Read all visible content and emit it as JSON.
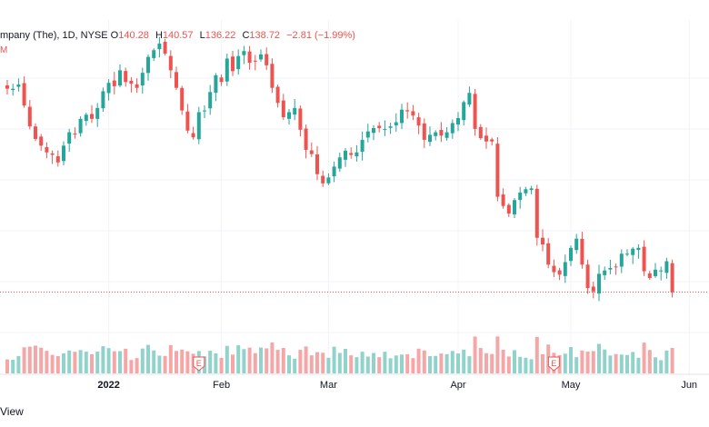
{
  "legend": {
    "title": "mpany (The), 1D, NYSE",
    "o_label": "O",
    "o_value": "140.28",
    "h_label": "H",
    "h_value": "140.57",
    "l_label": "L",
    "l_value": "136.22",
    "c_label": "C",
    "c_value": "138.72",
    "change": "−2.81 (−1.99%)",
    "sub": "M"
  },
  "footer": {
    "text": "View"
  },
  "colors": {
    "up": "#26a69a",
    "down": "#ef5350",
    "up_volume": "#8fd3cb",
    "down_volume": "#f5a6a6",
    "grid": "#f0f3fa"
  },
  "chart_data": {
    "type": "candlestick",
    "symbol_exchange": "NYSE",
    "interval": "1D",
    "last_close": 138.72,
    "x_tick_labels": [
      {
        "label": "2022",
        "index": 18,
        "bold": true
      },
      {
        "label": "Feb",
        "index": 38,
        "bold": false
      },
      {
        "label": "Mar",
        "index": 57,
        "bold": false
      },
      {
        "label": "Apr",
        "index": 80,
        "bold": false
      },
      {
        "label": "May",
        "index": 100,
        "bold": false
      },
      {
        "label": "Jun",
        "index": 121,
        "bold": false
      }
    ],
    "earnings_markers": [
      {
        "label": "E",
        "index": 34
      },
      {
        "label": "E",
        "index": 97
      }
    ],
    "closes": [
      163.0,
      163.0,
      163.5,
      161.0,
      158.5,
      157.0,
      156.2,
      155.4,
      155.1,
      154.2,
      156.2,
      157.8,
      157.6,
      159.4,
      159.9,
      159.4,
      160.7,
      162.7,
      163.7,
      163.3,
      165.2,
      163.8,
      163.6,
      163.1,
      164.9,
      166.8,
      167.6,
      168.4,
      167.2,
      165.2,
      163.1,
      160.4,
      158.0,
      157.2,
      160.2,
      160.4,
      162.6,
      164.6,
      163.8,
      166.6,
      165.1,
      166.9,
      167.5,
      166.1,
      166.3,
      167.1,
      165.8,
      163.1,
      161.3,
      159.6,
      160.2,
      160.7,
      158.1,
      155.7,
      155.2,
      152.8,
      151.7,
      152.4,
      153.7,
      154.8,
      155.6,
      155.1,
      155.4,
      156.9,
      157.9,
      158.3,
      158.3,
      158.2,
      158.5,
      159.0,
      160.5,
      160.3,
      159.8,
      158.6,
      156.9,
      157.5,
      157.8,
      157.4,
      157.8,
      158.9,
      159.5,
      161.4,
      162.5,
      158.2,
      157.1,
      156.7,
      156.7,
      150.1,
      149.0,
      148.1,
      149.7,
      150.6,
      151.0,
      151.1,
      145.2,
      144.4,
      142.0,
      141.1,
      140.8,
      142.3,
      144.0,
      145.1,
      142.0,
      139.2,
      138.8,
      140.9,
      141.3,
      141.6,
      141.7,
      143.3,
      143.3,
      143.9,
      144.0,
      141.2,
      140.4,
      141.4,
      141.3,
      142.4,
      138.7
    ]
  }
}
